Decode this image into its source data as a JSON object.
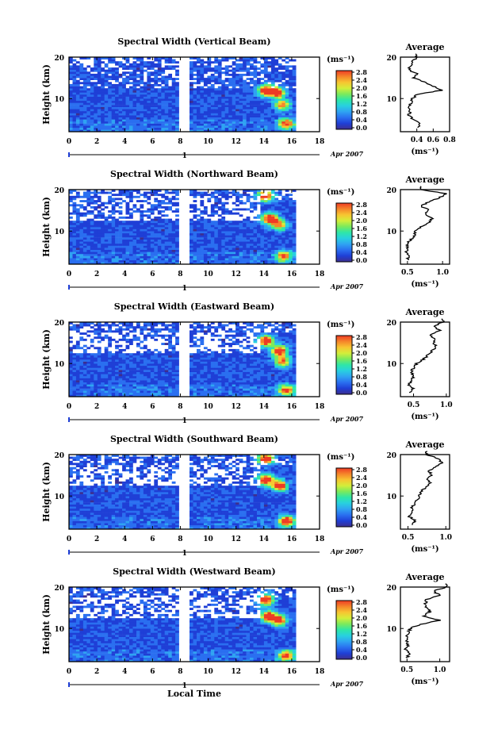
{
  "figure": {
    "x_axis_label": "Local Time",
    "date_label": "Apr 2007",
    "date_marker_label": "1",
    "colorbar_unit": "(ms⁻¹)",
    "colorbar_ticks": [
      "0.0",
      "0.4",
      "0.8",
      "1.2",
      "1.6",
      "2.0",
      "2.4",
      "2.8"
    ],
    "avg_unit": "(ms⁻¹)",
    "avg_title": "Average",
    "height_label": "Height (km)",
    "colorbar_colors": [
      "#3d2e8f",
      "#1f3fd6",
      "#2a6ff0",
      "#2fa3f2",
      "#28d0e0",
      "#2ee6a8",
      "#7bea5c",
      "#d4ee3a",
      "#f7c531",
      "#f5852a",
      "#ee3b24"
    ],
    "gap_color": "#ffffff"
  },
  "chart_data": [
    {
      "type": "heatmap",
      "title": "Spectral Width (Vertical Beam)",
      "xlabel": "Local Time",
      "ylabel": "Height (km)",
      "xlim": [
        0,
        18
      ],
      "ylim": [
        2,
        20
      ],
      "x_ticks": [
        0,
        2,
        4,
        6,
        8,
        10,
        12,
        14,
        16,
        18
      ],
      "y_ticks": [
        10,
        20
      ],
      "color_range": [
        0.0,
        2.8
      ],
      "data_gap_time": [
        8.0,
        8.6
      ],
      "data_end_time": 16.3,
      "hotspots": [
        {
          "t": 14.0,
          "h": 12.0,
          "v": 2.6
        },
        {
          "t": 14.8,
          "h": 11.5,
          "v": 2.8
        },
        {
          "t": 15.2,
          "h": 8.5,
          "v": 2.0
        },
        {
          "t": 15.5,
          "h": 4.0,
          "v": 2.2
        }
      ],
      "average": {
        "title": "Average",
        "xlabel": "(ms⁻¹)",
        "xlim": [
          0.2,
          0.8
        ],
        "x_ticks": [
          0.4,
          0.6,
          0.8
        ],
        "x_tick_labels": [
          "0.4",
          "0.6",
          "0.8"
        ],
        "heights": [
          3,
          4,
          5,
          6,
          7,
          8,
          9,
          10,
          11,
          12,
          13,
          14,
          15,
          16,
          17,
          18,
          19,
          20
        ],
        "values": [
          0.4,
          0.45,
          0.35,
          0.3,
          0.32,
          0.3,
          0.33,
          0.35,
          0.4,
          0.7,
          0.6,
          0.5,
          0.35,
          0.4,
          0.3,
          0.33,
          0.35,
          0.4
        ]
      }
    },
    {
      "type": "heatmap",
      "title": "Spectral Width (Northward Beam)",
      "xlabel": "Local Time",
      "ylabel": "Height (km)",
      "xlim": [
        0,
        18
      ],
      "ylim": [
        2,
        20
      ],
      "x_ticks": [
        0,
        2,
        4,
        6,
        8,
        10,
        12,
        14,
        16,
        18
      ],
      "y_ticks": [
        10,
        20
      ],
      "color_range": [
        0.0,
        2.8
      ],
      "data_gap_time": [
        8.0,
        8.6
      ],
      "data_end_time": 16.3,
      "hotspots": [
        {
          "t": 14.0,
          "h": 18.5,
          "v": 2.8
        },
        {
          "t": 14.3,
          "h": 13.0,
          "v": 2.9
        },
        {
          "t": 15.0,
          "h": 11.5,
          "v": 2.0
        },
        {
          "t": 15.3,
          "h": 4.0,
          "v": 2.0
        }
      ],
      "average": {
        "title": "Average",
        "xlabel": "(ms⁻¹)",
        "xlim": [
          0.4,
          1.1
        ],
        "x_ticks": [
          0.5,
          1.0
        ],
        "x_tick_labels": [
          "0.5",
          "1.0"
        ],
        "heights": [
          3,
          4,
          5,
          6,
          7,
          8,
          9,
          10,
          11,
          12,
          13,
          14,
          15,
          16,
          17,
          18,
          19,
          20
        ],
        "values": [
          0.5,
          0.52,
          0.48,
          0.5,
          0.5,
          0.55,
          0.6,
          0.62,
          0.7,
          0.8,
          0.85,
          0.75,
          0.8,
          0.7,
          0.8,
          0.95,
          1.05,
          0.7
        ]
      }
    },
    {
      "type": "heatmap",
      "title": "Spectral Width (Eastward Beam)",
      "xlabel": "Local Time",
      "ylabel": "Height (km)",
      "xlim": [
        0,
        18
      ],
      "ylim": [
        2,
        20
      ],
      "x_ticks": [
        0,
        2,
        4,
        6,
        8,
        10,
        12,
        14,
        16,
        18
      ],
      "y_ticks": [
        10,
        20
      ],
      "color_range": [
        0.0,
        2.8
      ],
      "data_gap_time": [
        8.0,
        8.6
      ],
      "data_end_time": 16.3,
      "hotspots": [
        {
          "t": 14.0,
          "h": 15.5,
          "v": 2.8
        },
        {
          "t": 15.0,
          "h": 13.0,
          "v": 2.8
        },
        {
          "t": 15.2,
          "h": 10.5,
          "v": 2.0
        },
        {
          "t": 15.5,
          "h": 3.5,
          "v": 2.3
        }
      ],
      "average": {
        "title": "Average",
        "xlabel": "(ms⁻¹)",
        "xlim": [
          0.3,
          1.05
        ],
        "x_ticks": [
          0.5,
          1.0
        ],
        "x_tick_labels": [
          "0.5",
          "1.0"
        ],
        "heights": [
          3,
          4,
          5,
          6,
          7,
          8,
          9,
          10,
          11,
          12,
          13,
          14,
          15,
          16,
          17,
          18,
          19,
          20
        ],
        "values": [
          0.45,
          0.5,
          0.42,
          0.48,
          0.5,
          0.47,
          0.5,
          0.55,
          0.65,
          0.72,
          0.78,
          0.85,
          0.8,
          0.82,
          0.75,
          0.9,
          0.8,
          0.95
        ]
      }
    },
    {
      "type": "heatmap",
      "title": "Spectral Width (Southward Beam)",
      "xlabel": "Local Time",
      "ylabel": "Height (km)",
      "xlim": [
        0,
        18
      ],
      "ylim": [
        2,
        20
      ],
      "x_ticks": [
        0,
        2,
        4,
        6,
        8,
        10,
        12,
        14,
        16,
        18
      ],
      "y_ticks": [
        10,
        20
      ],
      "color_range": [
        0.0,
        2.8
      ],
      "data_gap_time": [
        8.0,
        8.6
      ],
      "data_end_time": 16.3,
      "hotspots": [
        {
          "t": 14.0,
          "h": 19.0,
          "v": 2.8
        },
        {
          "t": 14.0,
          "h": 14.0,
          "v": 2.8
        },
        {
          "t": 15.0,
          "h": 12.5,
          "v": 2.6
        },
        {
          "t": 15.5,
          "h": 4.0,
          "v": 2.5
        }
      ],
      "average": {
        "title": "Average",
        "xlabel": "(ms⁻¹)",
        "xlim": [
          0.4,
          1.05
        ],
        "x_ticks": [
          0.5,
          1.0
        ],
        "x_tick_labels": [
          "0.5",
          "1.0"
        ],
        "heights": [
          3,
          4,
          5,
          6,
          7,
          8,
          9,
          10,
          11,
          12,
          13,
          14,
          15,
          16,
          17,
          18,
          19,
          20
        ],
        "values": [
          0.55,
          0.6,
          0.52,
          0.55,
          0.55,
          0.58,
          0.62,
          0.65,
          0.68,
          0.72,
          0.8,
          0.75,
          0.82,
          0.78,
          0.85,
          0.95,
          0.9,
          0.75
        ]
      }
    },
    {
      "type": "heatmap",
      "title": "Spectral Width (Westward Beam)",
      "xlabel": "Local Time",
      "ylabel": "Height (km)",
      "xlim": [
        0,
        18
      ],
      "ylim": [
        2,
        20
      ],
      "x_ticks": [
        0,
        2,
        4,
        6,
        8,
        10,
        12,
        14,
        16,
        18
      ],
      "y_ticks": [
        10,
        20
      ],
      "color_range": [
        0.0,
        2.8
      ],
      "data_gap_time": [
        8.0,
        8.6
      ],
      "data_end_time": 16.3,
      "hotspots": [
        {
          "t": 14.0,
          "h": 17.0,
          "v": 2.8
        },
        {
          "t": 14.2,
          "h": 13.0,
          "v": 2.6
        },
        {
          "t": 15.0,
          "h": 12.0,
          "v": 2.4
        },
        {
          "t": 15.5,
          "h": 3.5,
          "v": 2.2
        }
      ],
      "average": {
        "title": "Average",
        "xlabel": "(ms⁻¹)",
        "xlim": [
          0.4,
          1.15
        ],
        "x_ticks": [
          0.5,
          1.0
        ],
        "x_tick_labels": [
          "0.5",
          "1.0"
        ],
        "heights": [
          3,
          4,
          5,
          6,
          7,
          8,
          9,
          10,
          11,
          12,
          13,
          14,
          15,
          16,
          17,
          18,
          19,
          20
        ],
        "values": [
          0.5,
          0.55,
          0.48,
          0.52,
          0.5,
          0.5,
          0.52,
          0.55,
          0.7,
          1.0,
          0.75,
          0.85,
          0.8,
          0.78,
          0.8,
          1.0,
          0.9,
          1.1
        ]
      }
    }
  ]
}
